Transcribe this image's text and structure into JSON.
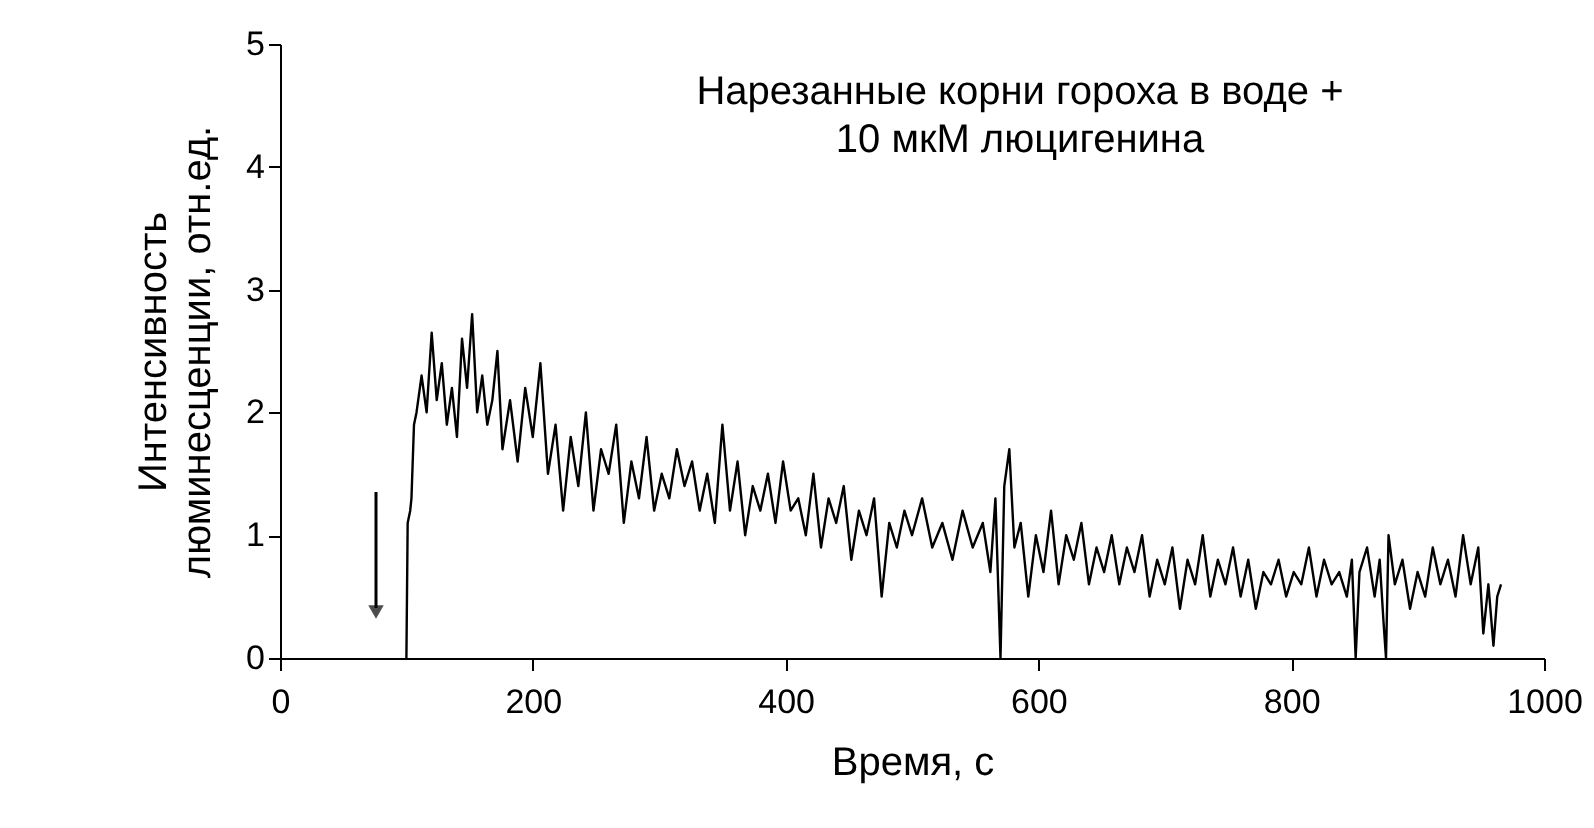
{
  "chart_data": {
    "type": "line",
    "title": "Нарезанные корни гороха в воде +\n10 мкМ люцигенина",
    "xlabel": "Время, с",
    "ylabel": "Интенсивность\nлюминесценции, отн.ед.",
    "x": [
      100,
      101,
      103,
      104,
      106,
      108,
      112,
      116,
      120,
      124,
      128,
      132,
      136,
      140,
      144,
      148,
      152,
      156,
      160,
      164,
      168,
      172,
      176,
      182,
      188,
      194,
      200,
      206,
      212,
      218,
      224,
      230,
      236,
      242,
      248,
      254,
      260,
      266,
      272,
      278,
      284,
      290,
      296,
      302,
      308,
      314,
      320,
      326,
      332,
      338,
      344,
      350,
      356,
      362,
      368,
      374,
      380,
      386,
      392,
      398,
      404,
      410,
      416,
      422,
      428,
      434,
      440,
      446,
      452,
      458,
      464,
      470,
      476,
      482,
      488,
      494,
      500,
      508,
      516,
      524,
      532,
      540,
      548,
      556,
      562,
      566,
      570,
      573,
      577,
      581,
      586,
      592,
      598,
      604,
      610,
      616,
      622,
      628,
      634,
      640,
      646,
      652,
      658,
      664,
      670,
      676,
      682,
      688,
      694,
      700,
      706,
      712,
      718,
      724,
      730,
      736,
      742,
      748,
      754,
      760,
      766,
      772,
      778,
      784,
      790,
      796,
      802,
      808,
      814,
      820,
      826,
      832,
      838,
      844,
      848,
      851,
      854,
      860,
      866,
      870,
      873,
      875,
      877,
      882,
      888,
      894,
      900,
      906,
      912,
      918,
      924,
      930,
      936,
      942,
      948,
      952,
      956,
      960,
      963,
      966
    ],
    "series": [
      {
        "color": "#000000",
        "values": [
          0,
          1.1,
          1.2,
          1.3,
          1.9,
          2.0,
          2.3,
          2.0,
          2.65,
          2.1,
          2.4,
          1.9,
          2.2,
          1.8,
          2.6,
          2.2,
          2.8,
          2.0,
          2.3,
          1.9,
          2.1,
          2.5,
          1.7,
          2.1,
          1.6,
          2.2,
          1.8,
          2.4,
          1.5,
          1.9,
          1.2,
          1.8,
          1.4,
          2.0,
          1.2,
          1.7,
          1.5,
          1.9,
          1.1,
          1.6,
          1.3,
          1.8,
          1.2,
          1.5,
          1.3,
          1.7,
          1.4,
          1.6,
          1.2,
          1.5,
          1.1,
          1.9,
          1.2,
          1.6,
          1.0,
          1.4,
          1.2,
          1.5,
          1.1,
          1.6,
          1.2,
          1.3,
          1.0,
          1.5,
          0.9,
          1.3,
          1.1,
          1.4,
          0.8,
          1.2,
          1.0,
          1.3,
          0.5,
          1.1,
          0.9,
          1.2,
          1.0,
          1.3,
          0.9,
          1.1,
          0.8,
          1.2,
          0.9,
          1.1,
          0.7,
          1.3,
          0.0,
          1.4,
          1.7,
          0.9,
          1.1,
          0.5,
          1.0,
          0.7,
          1.2,
          0.6,
          1.0,
          0.8,
          1.1,
          0.6,
          0.9,
          0.7,
          1.0,
          0.6,
          0.9,
          0.7,
          1.0,
          0.5,
          0.8,
          0.6,
          0.9,
          0.4,
          0.8,
          0.6,
          1.0,
          0.5,
          0.8,
          0.6,
          0.9,
          0.5,
          0.8,
          0.4,
          0.7,
          0.6,
          0.8,
          0.5,
          0.7,
          0.6,
          0.9,
          0.5,
          0.8,
          0.6,
          0.7,
          0.5,
          0.8,
          0.0,
          0.7,
          0.9,
          0.5,
          0.8,
          0.3,
          0.0,
          1.0,
          0.6,
          0.8,
          0.4,
          0.7,
          0.5,
          0.9,
          0.6,
          0.8,
          0.5,
          1.0,
          0.6,
          0.9,
          0.2,
          0.6,
          0.1,
          0.5,
          0.6
        ]
      }
    ],
    "xlim": [
      0,
      1000
    ],
    "xticks": [
      0,
      200,
      400,
      600,
      800,
      1000
    ],
    "ylim": [
      0,
      5
    ],
    "yticks": [
      0,
      1,
      2,
      3,
      4,
      5
    ],
    "grid": false,
    "marker": "none",
    "line_style": "solid"
  }
}
